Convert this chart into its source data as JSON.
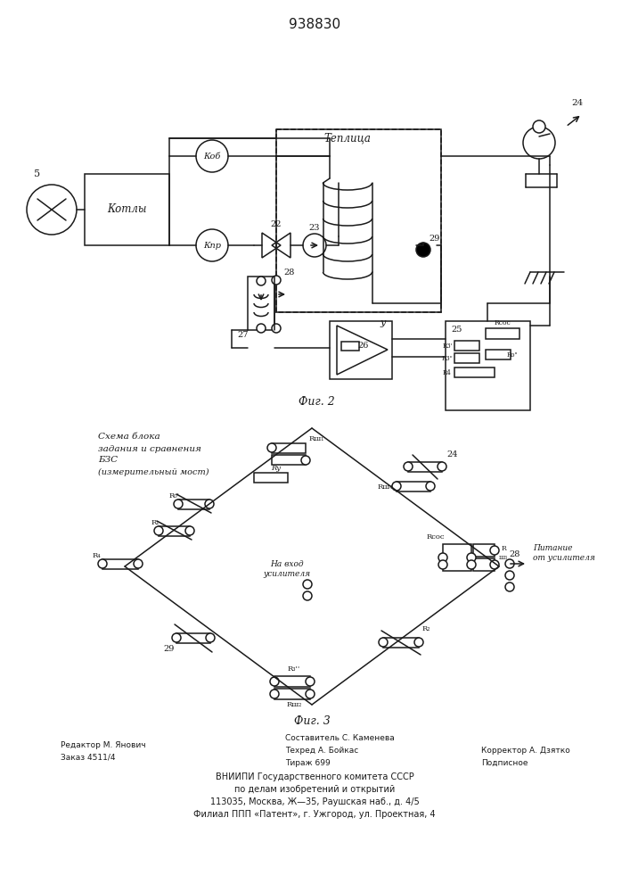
{
  "title": "938830",
  "bg": "#ffffff",
  "lc": "#1a1a1a",
  "fig2_caption": "Фиг. 2",
  "fig3_caption": "Фиг. 3",
  "fig3_title_lines": [
    "Схема блока",
    "задания и сравнения",
    "БЗС",
    "(измерительный мост)"
  ],
  "footer": {
    "left": [
      "Редактор М. Янович",
      "Заказ 4511/4"
    ],
    "center": [
      "Составитель С. Каменева",
      "Техред А. Бойкас",
      "Тираж 699"
    ],
    "right": [
      "Корректор А. Дзятко",
      "Подписное"
    ],
    "bottom": [
      "ВНИИПИ Государственного комитета СССР",
      "по делам изобретений и открытий",
      "113035, Москва, Ж—35, Раушская наб., д. 4/5",
      "Филиал ППП «Патент», г. Ужгород, ул. Проектная, 4"
    ]
  }
}
